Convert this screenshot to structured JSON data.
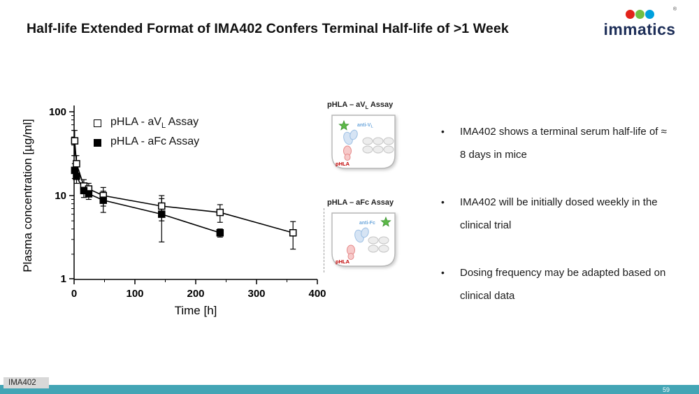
{
  "title": "Half-life Extended Format of IMA402 Confers Terminal Half-life of >1 Week",
  "logo": {
    "wordmark": "immatics",
    "registered": "®"
  },
  "chart_data": {
    "type": "line",
    "title": "",
    "xlabel": "Time [h]",
    "ylabel": "Plasma concentration [µg/ml]",
    "x_scale": "linear",
    "y_scale": "log",
    "xlim": [
      0,
      400
    ],
    "ylim": [
      1,
      100
    ],
    "x_ticks": [
      0,
      100,
      200,
      300,
      400
    ],
    "x_minor_ticks": [
      50,
      150,
      250,
      350
    ],
    "y_ticks": [
      1,
      10,
      100
    ],
    "grid": false,
    "legend_position": "top-left-inside",
    "series": [
      {
        "name": "pHLA - aVL Assay",
        "name_prefix": "pHLA - aV",
        "name_sub": "L",
        "name_suffix": " Assay",
        "marker": "open-square",
        "x": [
          1,
          4,
          16,
          24,
          48,
          144,
          240,
          360
        ],
        "y": [
          45,
          24,
          13,
          12,
          10,
          7.5,
          6.3,
          3.6
        ],
        "yerr": [
          15,
          6,
          2.5,
          2,
          2.5,
          2.5,
          1.5,
          1.3
        ]
      },
      {
        "name": "pHLA - aFc Assay",
        "name_prefix": "pHLA - aFc",
        "name_sub": "",
        "name_suffix": " Assay",
        "marker": "filled-square",
        "x": [
          1,
          4,
          16,
          24,
          48,
          144,
          240
        ],
        "y": [
          20,
          17,
          11.5,
          10.5,
          8.8,
          6.0,
          3.6
        ],
        "yerr": [
          4,
          3,
          2,
          1.5,
          2.5,
          3.2,
          0.4
        ]
      }
    ]
  },
  "assays": [
    {
      "title_prefix": "pHLA – aV",
      "title_sub": "L",
      "title_suffix": " Assay",
      "ab_prefix": "anti-V",
      "ab_sub": "L",
      "phla_label": "pHLA"
    },
    {
      "title_prefix": "pHLA – aFc Assay",
      "title_sub": "",
      "title_suffix": "",
      "ab_prefix": "anti-Fc",
      "ab_sub": "",
      "phla_label": "pHLA"
    }
  ],
  "bullets": [
    "IMA402 shows a terminal serum half-life of ≈ 8 days in mice",
    "IMA402 will be initially dosed weekly in the clinical trial",
    "Dosing frequency may be adapted based on clinical data"
  ],
  "footer": {
    "tag": "IMA402",
    "page": "59"
  },
  "colors": {
    "teal_bar": "#43a5b5",
    "logo_red": "#e2231a",
    "logo_green": "#71bf44",
    "logo_blue": "#00a0dd",
    "logo_navy": "#1d2e58",
    "star_green": "#5cb947",
    "phla_red": "#c00000",
    "antibody_blue": "#6fa8dc"
  }
}
